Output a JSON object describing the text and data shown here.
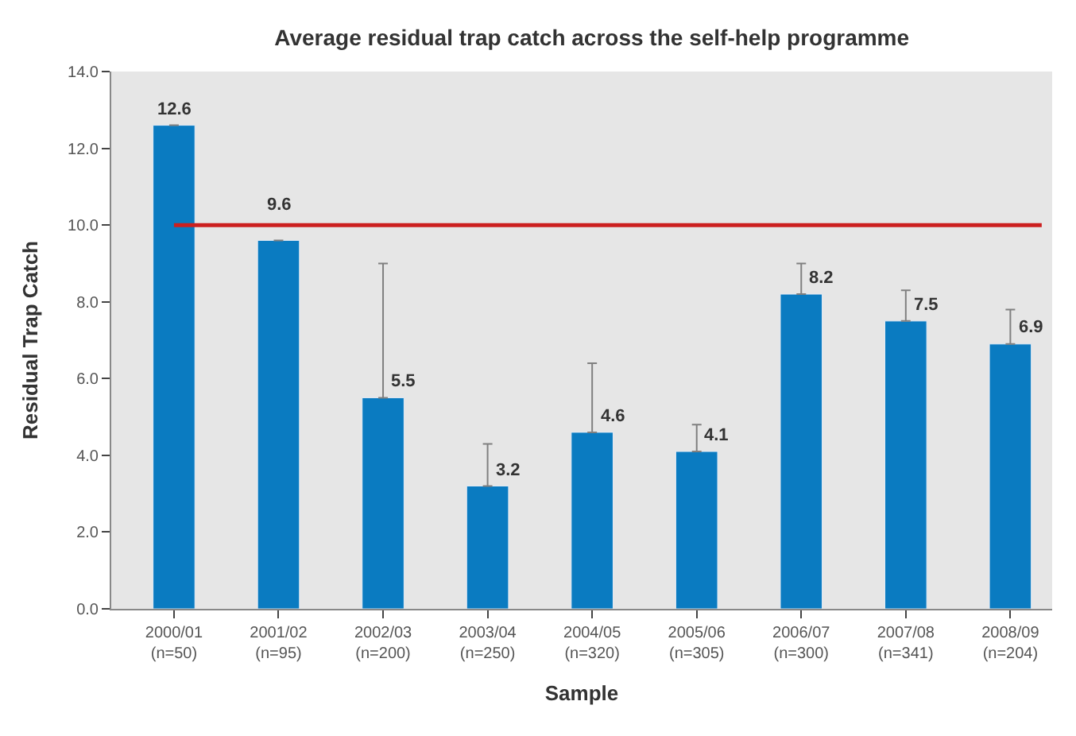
{
  "chart_data": {
    "type": "bar",
    "title": "Average residual trap catch across the self-help programme",
    "xlabel": "Sample",
    "ylabel": "Residual Trap Catch",
    "categories": [
      "2000/01\n(n=50)",
      "2001/02\n(n=95)",
      "2002/03\n(n=200)",
      "2003/04\n(n=250)",
      "2004/05\n(n=320)",
      "2005/06\n(n=305)",
      "2006/07\n(n=300)",
      "2007/08\n(n=341)",
      "2008/09\n(n=204)"
    ],
    "values": [
      12.6,
      9.6,
      5.5,
      3.2,
      4.6,
      4.1,
      8.2,
      7.5,
      6.9
    ],
    "errors": [
      null,
      null,
      [
        5.5,
        9.0
      ],
      [
        3.2,
        4.3
      ],
      [
        4.6,
        6.4
      ],
      [
        4.1,
        4.8
      ],
      [
        8.2,
        9.0
      ],
      [
        7.5,
        8.3
      ],
      [
        6.9,
        7.8
      ]
    ],
    "color": "#0a7bc1",
    "data_labels": true,
    "ylim": [
      0,
      14
    ],
    "yticks": [
      {
        "value": 0,
        "label": "0.0"
      },
      {
        "value": 2,
        "label": "2.0"
      },
      {
        "value": 4,
        "label": "4.0"
      },
      {
        "value": 6,
        "label": "6.0"
      },
      {
        "value": 8,
        "label": "8.0"
      },
      {
        "value": 10,
        "label": "10.0"
      },
      {
        "value": 12,
        "label": "12.0"
      },
      {
        "value": 14,
        "label": "14.0"
      }
    ],
    "ref_lines": [
      {
        "axis": "y",
        "value": 10,
        "color": "#cc1f1f"
      }
    ],
    "grid": false
  }
}
